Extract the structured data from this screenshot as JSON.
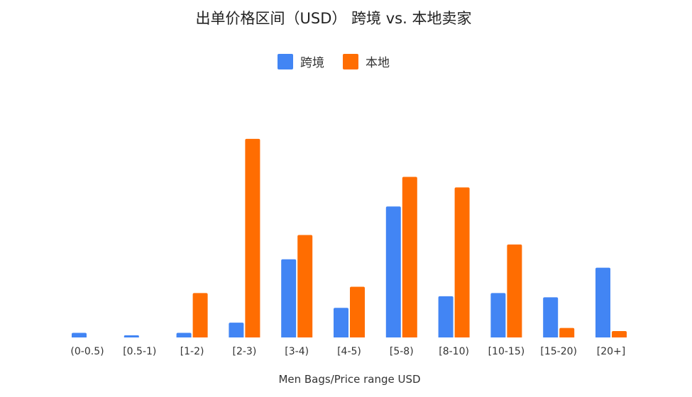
{
  "chart_data": {
    "type": "bar",
    "title": "出单价格区间（USD） 跨境 vs. 本地卖家",
    "xlabel": "Men Bags/Price range USD",
    "ylabel": "",
    "categories": [
      "(0-0.5)",
      "[0.5-1)",
      "[1-2)",
      "[2-3)",
      "[3-4)",
      "[4-5)",
      "[5-8)",
      "[8-10)",
      "[10-15)",
      "[15-20)",
      "[20+]"
    ],
    "series": [
      {
        "name": "跨境",
        "color": "#4285F4",
        "values": [
          2.2,
          1.0,
          2.2,
          7.0,
          37.0,
          14.0,
          62.0,
          19.5,
          21.0,
          19.0,
          33.0
        ]
      },
      {
        "name": "本地",
        "color": "#FF6D01",
        "values": [
          0,
          0,
          21.0,
          94.0,
          48.5,
          24.0,
          76.0,
          71.0,
          44.0,
          4.5,
          3.0
        ]
      }
    ],
    "ylim": [
      0,
      100
    ],
    "grid": false,
    "legend_position": "top"
  }
}
